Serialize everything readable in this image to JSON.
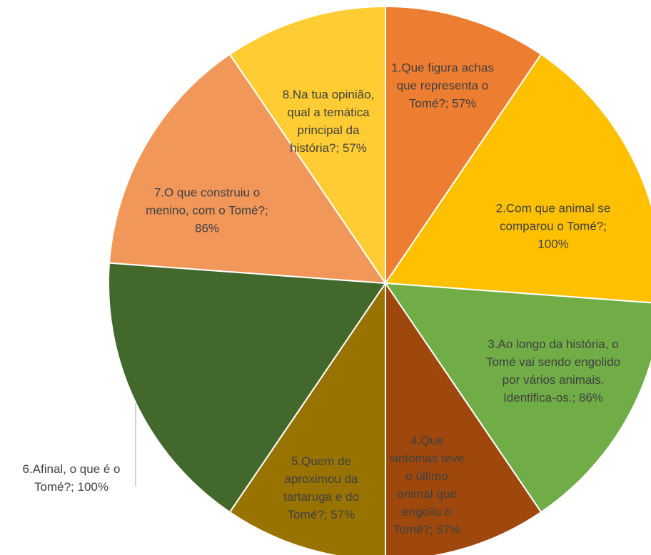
{
  "chart_data": {
    "type": "pie",
    "values": [
      57,
      100,
      86,
      57,
      57,
      100,
      86,
      57
    ],
    "value_labels": [
      "1.Que figura achas que representa o Tomé?; 57%",
      "2.Com que animal se comparou o Tomé?; 100%",
      "3.Ao longo da história, o Tomé vai sendo engolido por vários animais. Identifica-os.; 86%",
      "4.Que sintomas teve o último animal que engoliu o Tomé?; 57%",
      "5.Quem de aproximou da tartaruga e do Tomé?; 57%",
      "6.Afinal, o que é o Tomé?; 100%",
      "7.O que construiu o menino, com o Tomé?; 86%",
      "8.Na tua opinião, qual a temática principal da história?; 57%"
    ],
    "colors": [
      "#ED7D31",
      "#FFC000",
      "#70AD47",
      "#9E480E",
      "#997300",
      "#43682B",
      "#F1975A",
      "#FFCD33"
    ]
  }
}
